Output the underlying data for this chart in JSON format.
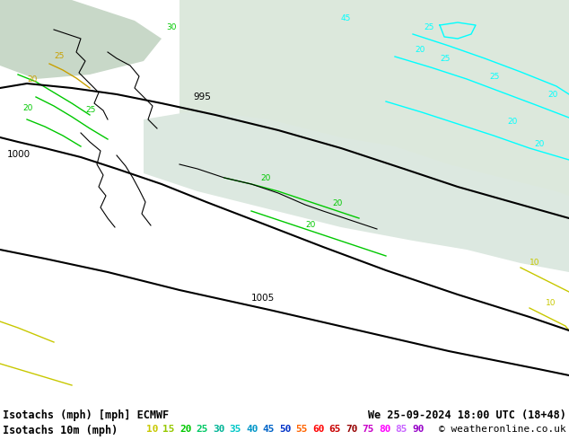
{
  "title_left": "Isotachs (mph) [mph] ECMWF",
  "title_right": "We 25-09-2024 18:00 UTC (18+48)",
  "subtitle_left": "Isotachs 10m (mph)",
  "legend_values": [
    "10",
    "15",
    "20",
    "25",
    "30",
    "35",
    "40",
    "45",
    "50",
    "55",
    "60",
    "65",
    "70",
    "75",
    "80",
    "85",
    "90"
  ],
  "legend_colors": [
    "#c8f000",
    "#96dc00",
    "#00c800",
    "#00c864",
    "#00b496",
    "#00c8c8",
    "#0096c8",
    "#0064c8",
    "#0032c8",
    "#ff3200",
    "#ff0000",
    "#c80000",
    "#aa0000",
    "#c800c8",
    "#ff00ff",
    "#c864ff",
    "#9600c8"
  ],
  "copyright_text": "© weatheronline.co.uk",
  "bg_color": "#c8f096",
  "footer_bg": "#ffffff",
  "map_bg": "#c8f096",
  "sea_color_n": "#dce8dc",
  "sea_color_light": "#e8f0e8"
}
